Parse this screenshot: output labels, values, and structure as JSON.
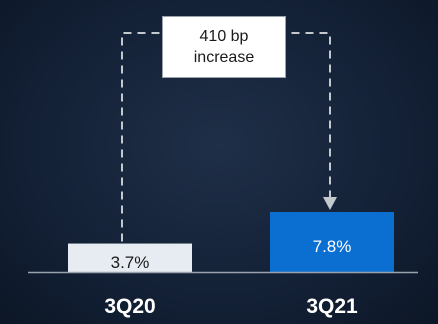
{
  "chart_data": {
    "type": "bar",
    "categories": [
      "3Q20",
      "3Q21"
    ],
    "values": [
      3.7,
      7.8
    ],
    "value_labels": [
      "3.7%",
      "7.8%"
    ],
    "ylim": [
      0,
      8
    ],
    "grid": false,
    "legend": "none",
    "annotation": {
      "text": "410 bp\nincrease",
      "from": "3Q20",
      "to": "3Q21"
    },
    "colors": {
      "bars": [
        "#e6ecf1",
        "#0a6fd1"
      ],
      "value_labels": [
        "#1a1a1a",
        "#ffffff"
      ],
      "category_labels": "#ffffff",
      "connector": "#c4c9cf",
      "axis": "#9aa3ad"
    }
  }
}
